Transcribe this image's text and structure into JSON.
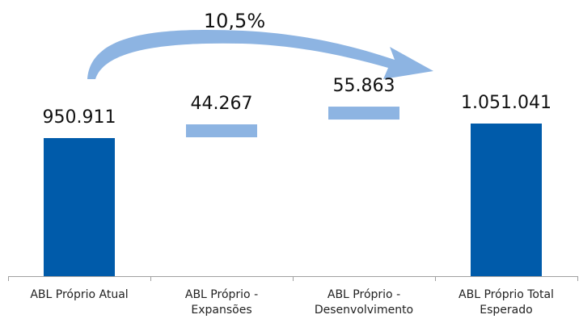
{
  "chart_data": {
    "type": "bar",
    "subtype": "waterfall",
    "categories": [
      "ABL Próprio Atual",
      "ABL Próprio -\nExpansões",
      "ABL Próprio -\nDesenvolvimento",
      "ABL Próprio Total\nEsperado"
    ],
    "values": [
      950911,
      44267,
      55863,
      1051041
    ],
    "value_labels": [
      "950.911",
      "44.267",
      "55.863",
      "1.051.041"
    ],
    "bar_kinds": [
      "total",
      "increment",
      "increment",
      "total"
    ],
    "ylim": [
      0,
      1250000
    ],
    "growth_annotation": "10,5%",
    "colors": {
      "total": "#005BAA",
      "increment": "#8DB4E2",
      "axis": "#A0A0A0"
    },
    "grid": false,
    "legend": "none"
  }
}
